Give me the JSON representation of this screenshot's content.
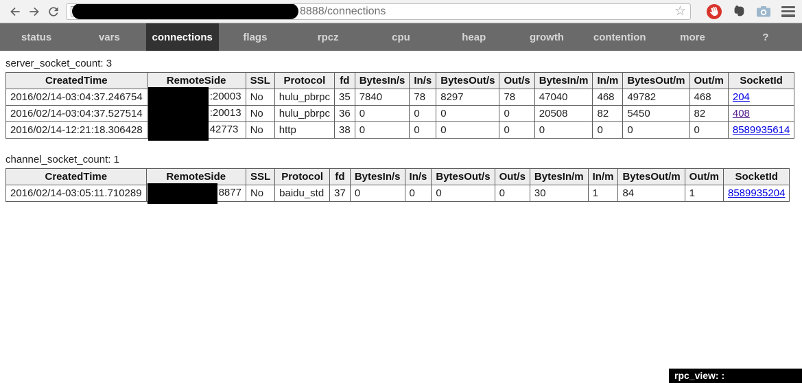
{
  "browser": {
    "url_visible": "8888/connections",
    "star_glyph": "☆",
    "icons": {
      "back": "back-arrow",
      "forward": "forward-arrow",
      "reload": "reload-arrow",
      "extension_1": "adblock-hand",
      "extension_2": "evernote-elephant",
      "extension_3": "screenshot-camera",
      "menu": "hamburger-menu"
    }
  },
  "nav": {
    "tabs": [
      "status",
      "vars",
      "connections",
      "flags",
      "rpcz",
      "cpu",
      "heap",
      "growth",
      "contention",
      "more",
      "?"
    ],
    "active": "connections"
  },
  "table_columns": [
    {
      "key": "created",
      "label": "CreatedTime"
    },
    {
      "key": "remote",
      "label": "RemoteSide",
      "redacted": true
    },
    {
      "key": "ssl",
      "label": "SSL"
    },
    {
      "key": "protocol",
      "label": "Protocol"
    },
    {
      "key": "fd",
      "label": "fd"
    },
    {
      "key": "bytes_in_s",
      "label": "BytesIn/s"
    },
    {
      "key": "in_s",
      "label": "In/s"
    },
    {
      "key": "bytes_out_s",
      "label": "BytesOut/s"
    },
    {
      "key": "out_s",
      "label": "Out/s"
    },
    {
      "key": "bytes_in_m",
      "label": "BytesIn/m"
    },
    {
      "key": "in_m",
      "label": "In/m"
    },
    {
      "key": "bytes_out_m",
      "label": "BytesOut/m"
    },
    {
      "key": "out_m",
      "label": "Out/m"
    },
    {
      "key": "socket_id",
      "label": "SocketId",
      "link": true
    }
  ],
  "tables": [
    {
      "title": "server_socket_count: 3",
      "rows": [
        {
          "created": "2016/02/14-03:04:37.246754",
          "remote": ":20003",
          "ssl": "No",
          "protocol": "hulu_pbrpc",
          "fd": "35",
          "bytes_in_s": "7840",
          "in_s": "78",
          "bytes_out_s": "8297",
          "out_s": "78",
          "bytes_in_m": "47040",
          "in_m": "468",
          "bytes_out_m": "49782",
          "out_m": "468",
          "socket_id": "204",
          "socket_visited": false
        },
        {
          "created": "2016/02/14-03:04:37.527514",
          "remote": ":20013",
          "ssl": "No",
          "protocol": "hulu_pbrpc",
          "fd": "36",
          "bytes_in_s": "0",
          "in_s": "0",
          "bytes_out_s": "0",
          "out_s": "0",
          "bytes_in_m": "20508",
          "in_m": "82",
          "bytes_out_m": "5450",
          "out_m": "82",
          "socket_id": "408",
          "socket_visited": true
        },
        {
          "created": "2016/02/14-12:21:18.306428",
          "remote": "42773",
          "ssl": "No",
          "protocol": "http",
          "fd": "38",
          "bytes_in_s": "0",
          "in_s": "0",
          "bytes_out_s": "0",
          "out_s": "0",
          "bytes_in_m": "0",
          "in_m": "0",
          "bytes_out_m": "0",
          "out_m": "0",
          "socket_id": "8589935614",
          "socket_visited": false
        }
      ]
    },
    {
      "title": "channel_socket_count: 1",
      "rows": [
        {
          "created": "2016/02/14-03:05:11.710289",
          "remote": "8877",
          "ssl": "No",
          "protocol": "baidu_std",
          "fd": "37",
          "bytes_in_s": "0",
          "in_s": "0",
          "bytes_out_s": "0",
          "out_s": "0",
          "bytes_in_m": "30",
          "in_m": "1",
          "bytes_out_m": "84",
          "out_m": "1",
          "socket_id": "8589935204",
          "socket_visited": false
        }
      ]
    }
  ],
  "status_bubble": {
    "text": "rpc_view: :"
  },
  "colors": {
    "link": "#0000e0",
    "link_visited": "#551a8b",
    "nav_bg": "#6a6a6a",
    "nav_active_bg": "#323232",
    "table_header_bg": "#ededed",
    "table_border": "#5e5e5e",
    "toolbar_bg": "#f2f2f2"
  }
}
